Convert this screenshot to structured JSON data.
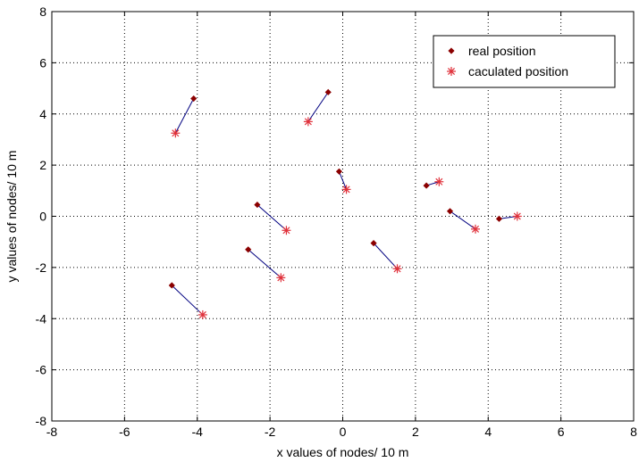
{
  "chart_data": {
    "type": "scatter",
    "title": "",
    "xlabel": "x values of nodes/ 10 m",
    "ylabel": "y values of nodes/ 10 m",
    "xlim": [
      -8,
      8
    ],
    "ylim": [
      -8,
      8
    ],
    "xticks": [
      -8,
      -6,
      -4,
      -2,
      0,
      2,
      4,
      6,
      8
    ],
    "yticks": [
      -8,
      -6,
      -4,
      -2,
      0,
      2,
      4,
      6,
      8
    ],
    "xtick_labels": [
      "-8",
      "-6",
      "-4",
      "-2",
      "0",
      "2",
      "4",
      "6",
      "8"
    ],
    "ytick_labels": [
      "-8",
      "-6",
      "-4",
      "-2",
      "0",
      "2",
      "4",
      "6",
      "8"
    ],
    "grid": true,
    "legend_position": "top-right",
    "series": [
      {
        "name": "real position",
        "marker": "diamond",
        "color": "#8b0000",
        "x": [
          -4.1,
          -0.4,
          -0.1,
          -2.35,
          -2.6,
          -4.7,
          0.85,
          2.3,
          2.95,
          4.3
        ],
        "y": [
          4.6,
          4.85,
          1.75,
          0.45,
          -1.3,
          -2.7,
          -1.05,
          1.2,
          0.2,
          -0.1
        ]
      },
      {
        "name": "caculated position",
        "marker": "asterisk",
        "color": "#e0303a",
        "x": [
          -4.6,
          -0.95,
          0.1,
          -1.55,
          -1.7,
          -3.85,
          1.5,
          2.65,
          3.65,
          4.8
        ],
        "y": [
          3.25,
          3.7,
          1.05,
          -0.55,
          -2.4,
          -3.85,
          -2.05,
          1.35,
          -0.5,
          0.0
        ]
      }
    ],
    "connector_color": "#000080"
  }
}
